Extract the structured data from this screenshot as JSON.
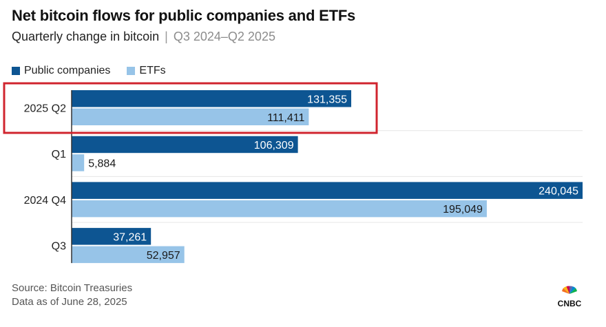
{
  "header": {
    "title": "Net bitcoin flows for public companies and ETFs",
    "subtitle_main": "Quarterly change in bitcoin",
    "subtitle_sep": "|",
    "subtitle_range": "Q3 2024–Q2 2025"
  },
  "legend": {
    "public": "Public companies",
    "etfs": "ETFs"
  },
  "colors": {
    "public": "#0d5592",
    "etfs": "#97c4e8",
    "highlight": "#d0242e"
  },
  "chart_data": {
    "type": "bar",
    "orientation": "horizontal",
    "categories": [
      "2025 Q2",
      "Q1",
      "2024 Q4",
      "Q3"
    ],
    "series": [
      {
        "name": "Public companies",
        "values": [
          131355,
          106309,
          240045,
          37261
        ],
        "labels": [
          "131,355",
          "106,309",
          "240,045",
          "37,261"
        ]
      },
      {
        "name": "ETFs",
        "values": [
          111411,
          5884,
          195049,
          52957
        ],
        "labels": [
          "111,411",
          "5,884",
          "195,049",
          "52,957"
        ]
      }
    ],
    "highlighted_category": "2025 Q2",
    "xlim": [
      0,
      240045
    ],
    "grid": false
  },
  "footer": {
    "source": "Source: Bitcoin Treasuries",
    "date": "Data as of June 28, 2025",
    "logo_text": "CNBC"
  }
}
